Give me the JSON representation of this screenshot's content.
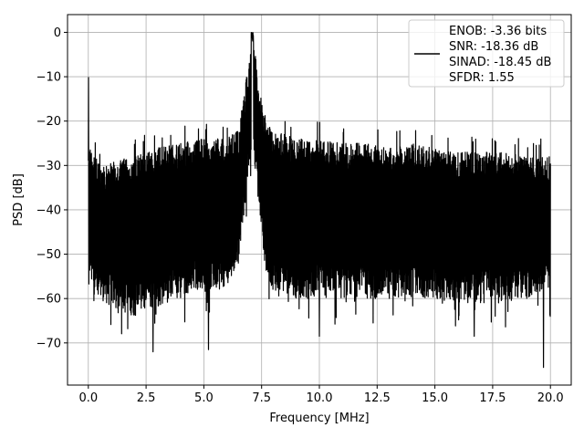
{
  "chart_data": {
    "type": "line",
    "title": "",
    "xlabel": "Frequency [MHz]",
    "ylabel": "PSD [dB]",
    "xlim": [
      -0.9,
      20.9
    ],
    "ylim": [
      -79.5,
      4.0
    ],
    "xticks": [
      0.0,
      2.5,
      5.0,
      7.5,
      10.0,
      12.5,
      15.0,
      17.5,
      20.0
    ],
    "xtick_labels": [
      "0.0",
      "2.5",
      "5.0",
      "7.5",
      "10.0",
      "12.5",
      "15.0",
      "17.5",
      "20.0"
    ],
    "yticks": [
      0,
      -10,
      -20,
      -30,
      -40,
      -50,
      -60,
      -70
    ],
    "ytick_labels": [
      "0",
      "−10",
      "−20",
      "−30",
      "−40",
      "−50",
      "−60",
      "−70"
    ],
    "grid": true,
    "legend_position": "top-right",
    "legend_lines": [
      "ENOB: -3.36 bits",
      "SNR: -18.36 dB",
      "SINAD: -18.45 dB",
      "SFDR: 1.55"
    ],
    "series": [
      {
        "color": "#000000",
        "x_range": [
          0.0,
          20.0
        ],
        "peak": {
          "x": 7.1,
          "y": 0.0
        },
        "dc_spike": {
          "x": 0.0,
          "y": -10.2
        },
        "envelope": {
          "x": [
            0.0,
            0.5,
            1.0,
            2.0,
            3.0,
            4.0,
            5.0,
            6.0,
            6.5,
            6.8,
            7.1,
            7.4,
            7.7,
            8.0,
            9.0,
            10.0,
            11.0,
            12.0,
            13.0,
            14.0,
            15.0,
            16.0,
            17.0,
            18.0,
            19.0,
            20.0
          ],
          "upper": [
            -25,
            -30,
            -29,
            -28,
            -26,
            -25,
            -24,
            -24,
            -22,
            -12,
            0,
            -12,
            -20,
            -22,
            -24,
            -24,
            -25,
            -25,
            -26,
            -25,
            -26,
            -27,
            -27,
            -27,
            -28,
            -28
          ],
          "lower": [
            -58,
            -60,
            -62,
            -64,
            -62,
            -60,
            -58,
            -58,
            -52,
            -38,
            -25,
            -40,
            -55,
            -58,
            -60,
            -60,
            -60,
            -60,
            -60,
            -60,
            -60,
            -61,
            -61,
            -61,
            -60,
            -58
          ]
        },
        "notable_minima": [
          {
            "x": 2.8,
            "y": -72
          },
          {
            "x": 5.2,
            "y": -71.5
          },
          {
            "x": 10.0,
            "y": -68.5
          },
          {
            "x": 16.7,
            "y": -68.5
          },
          {
            "x": 19.7,
            "y": -75.5
          }
        ]
      }
    ]
  }
}
